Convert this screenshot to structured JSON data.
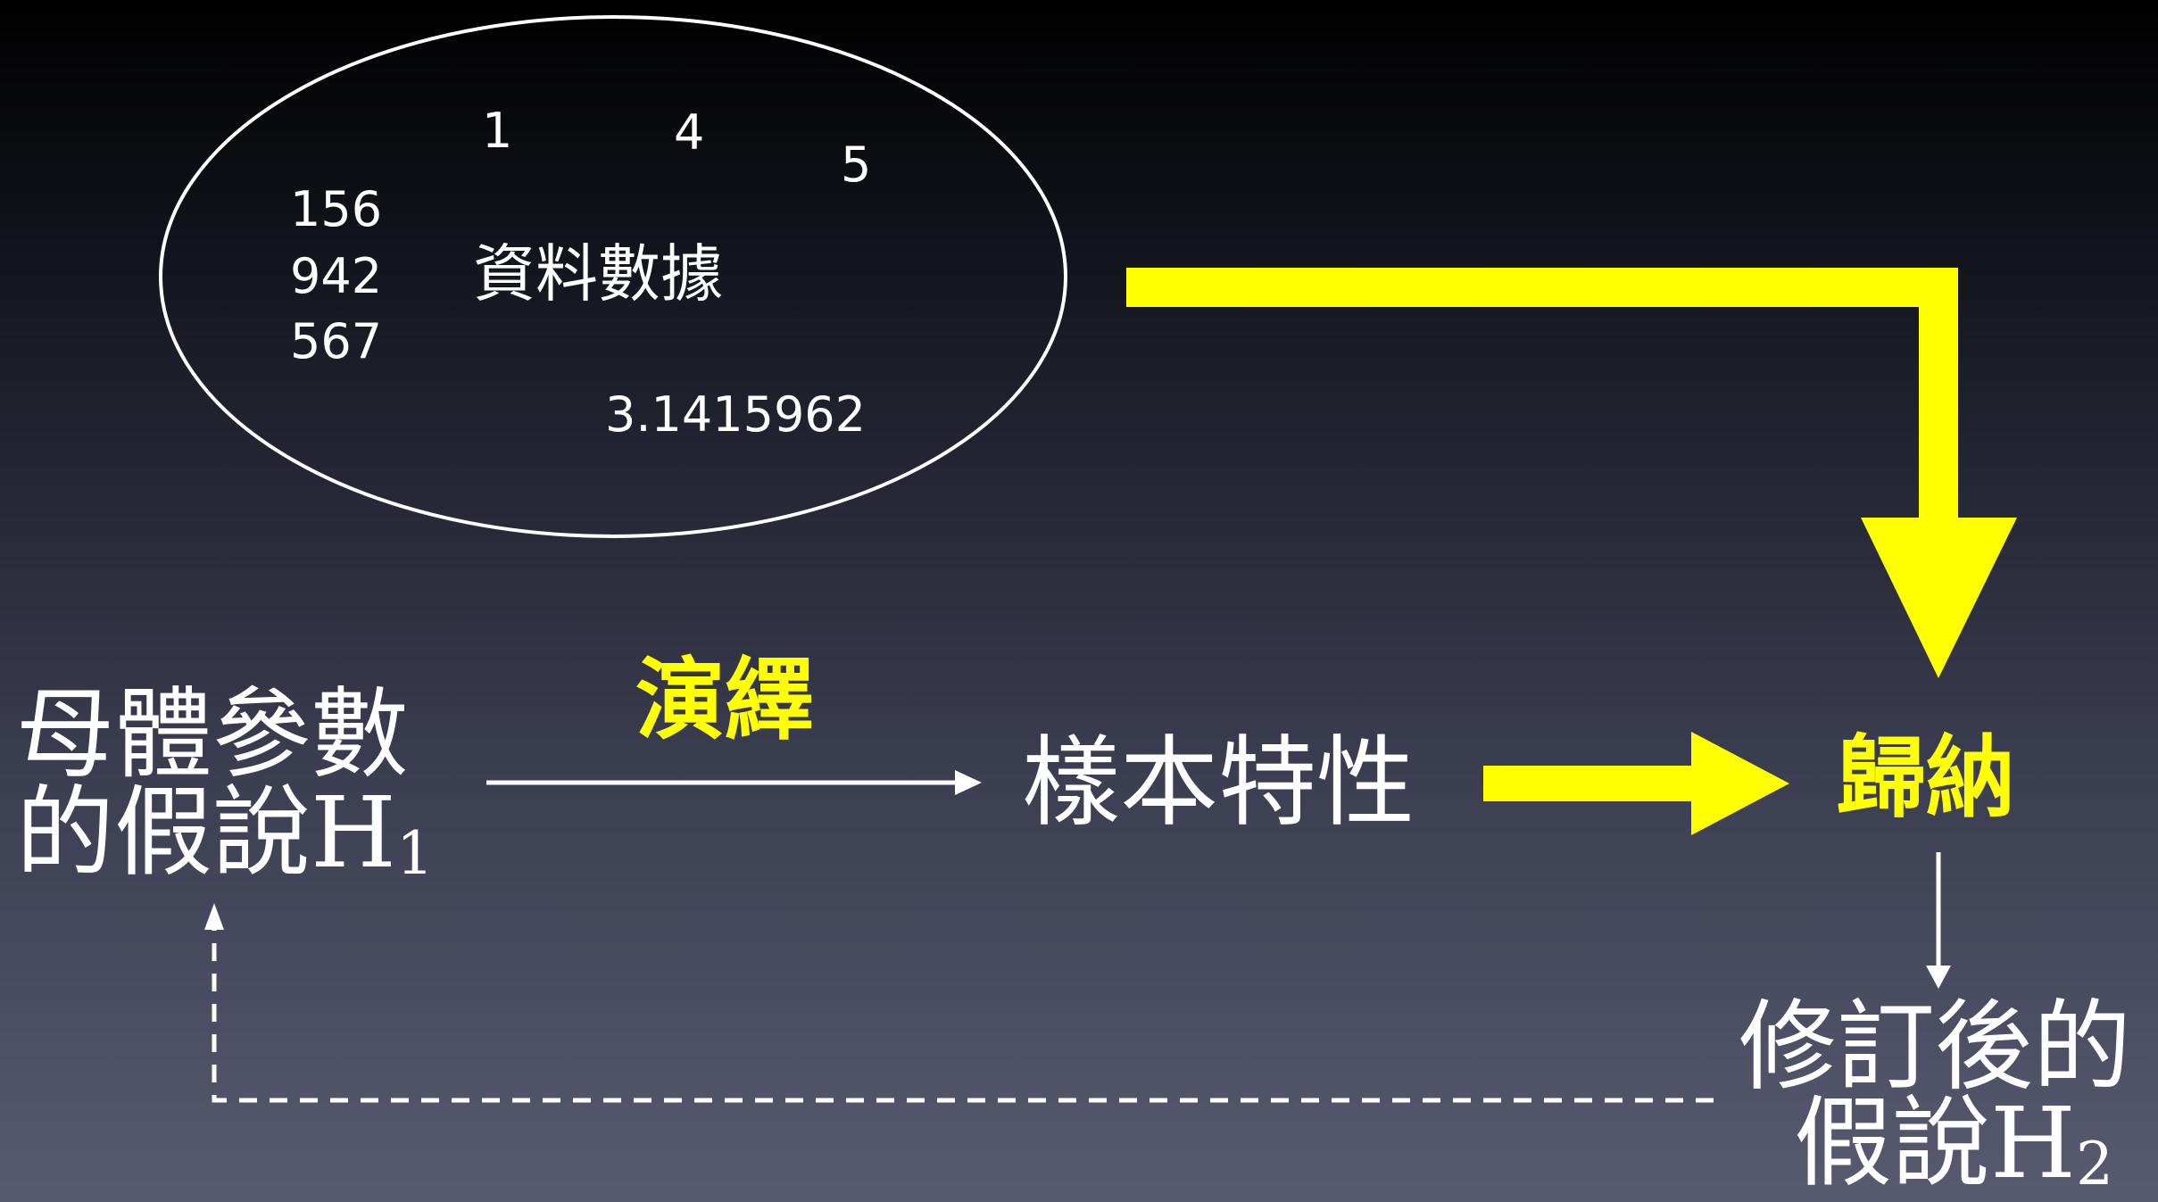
{
  "data_cloud": {
    "numbers": [
      {
        "id": "n1",
        "text": "1"
      },
      {
        "id": "n4",
        "text": "4"
      },
      {
        "id": "n5",
        "text": "5"
      },
      {
        "id": "n156",
        "text": "156"
      },
      {
        "id": "n942",
        "text": "942"
      },
      {
        "id": "n567",
        "text": "567"
      },
      {
        "id": "npi",
        "text": "3.1415962"
      }
    ],
    "label": "資料數據"
  },
  "population_hypothesis": {
    "line1": "母體參數",
    "line2": "的假說H",
    "subscript": "1"
  },
  "deduction_label": "演繹",
  "sample_characteristics": "樣本特性",
  "induction_label": "歸納",
  "revised_hypothesis": {
    "line1": "修訂後的",
    "line2": "假說H",
    "subscript": "2"
  },
  "colors": {
    "highlight": "#ffff00",
    "text": "#ffffff"
  }
}
